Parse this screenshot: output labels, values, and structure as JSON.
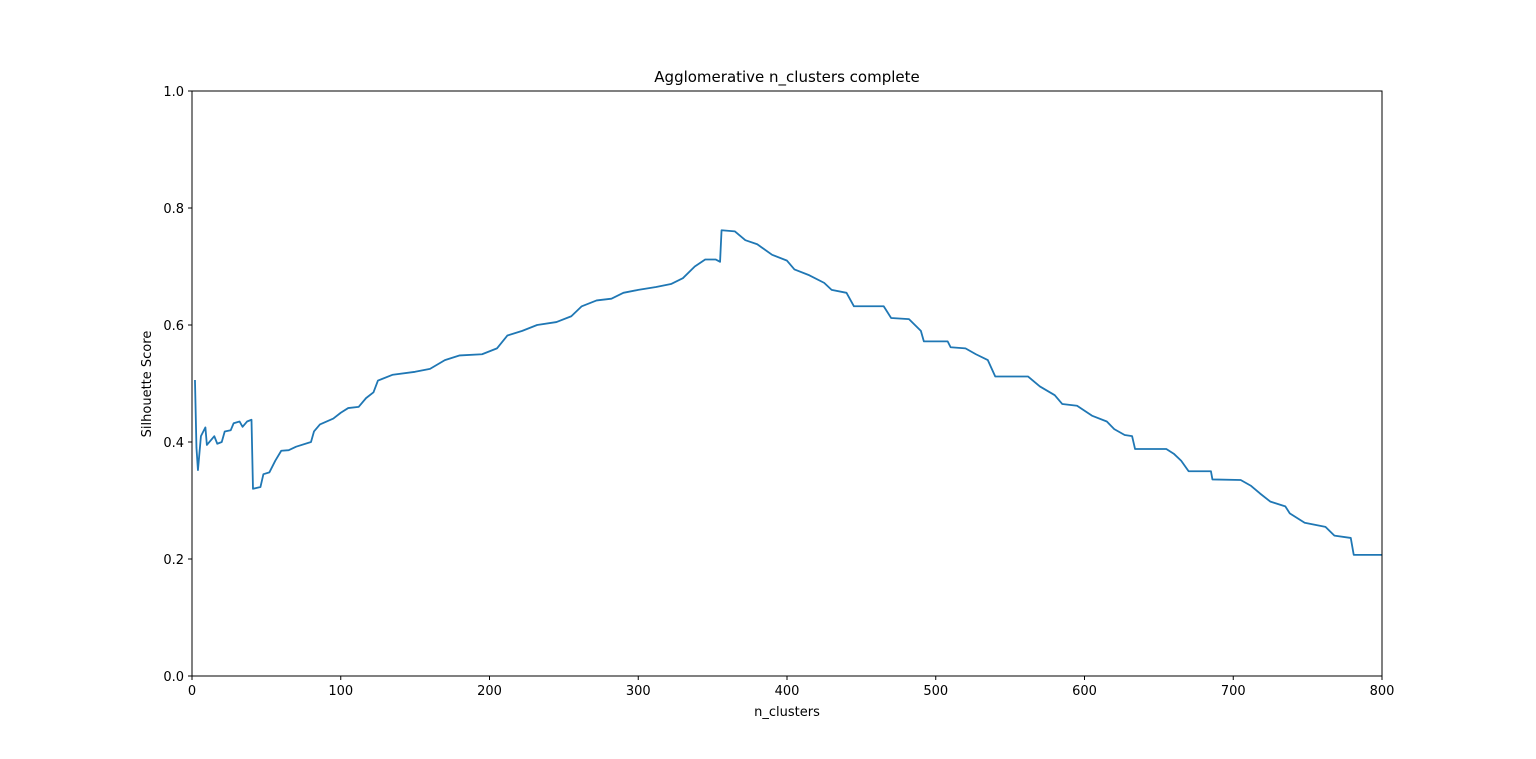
{
  "chart_data": {
    "type": "line",
    "title": "Agglomerative n_clusters complete",
    "x_label": "n_clusters",
    "y_label": "Silhouette Score",
    "x": [
      2,
      3,
      4,
      6,
      9,
      10,
      15,
      17,
      20,
      22,
      26,
      28,
      32,
      34,
      37,
      40,
      41,
      46,
      48,
      52,
      56,
      60,
      65,
      70,
      80,
      82,
      86,
      95,
      100,
      105,
      112,
      117,
      122,
      125,
      135,
      150,
      160,
      170,
      180,
      195,
      205,
      212,
      222,
      232,
      245,
      255,
      262,
      272,
      282,
      290,
      300,
      312,
      322,
      330,
      338,
      345,
      352,
      355,
      356,
      365,
      372,
      380,
      390,
      400,
      405,
      415,
      425,
      430,
      440,
      445,
      465,
      470,
      482,
      490,
      492,
      508,
      510,
      520,
      527,
      535,
      540,
      562,
      570,
      580,
      585,
      595,
      605,
      615,
      620,
      627,
      632,
      634,
      655,
      660,
      665,
      670,
      685,
      686,
      705,
      712,
      718,
      725,
      735,
      738,
      748,
      762,
      768,
      779,
      781,
      800
    ],
    "values": [
      0.506,
      0.39,
      0.352,
      0.41,
      0.425,
      0.395,
      0.41,
      0.397,
      0.4,
      0.418,
      0.42,
      0.432,
      0.435,
      0.426,
      0.435,
      0.438,
      0.32,
      0.323,
      0.345,
      0.348,
      0.368,
      0.385,
      0.386,
      0.392,
      0.4,
      0.418,
      0.43,
      0.44,
      0.45,
      0.458,
      0.46,
      0.475,
      0.485,
      0.505,
      0.515,
      0.52,
      0.525,
      0.54,
      0.548,
      0.55,
      0.56,
      0.582,
      0.59,
      0.6,
      0.605,
      0.615,
      0.632,
      0.642,
      0.645,
      0.655,
      0.66,
      0.665,
      0.67,
      0.68,
      0.7,
      0.712,
      0.712,
      0.708,
      0.762,
      0.76,
      0.745,
      0.738,
      0.72,
      0.71,
      0.695,
      0.685,
      0.672,
      0.66,
      0.655,
      0.632,
      0.632,
      0.612,
      0.61,
      0.59,
      0.572,
      0.572,
      0.562,
      0.56,
      0.55,
      0.54,
      0.512,
      0.512,
      0.495,
      0.48,
      0.465,
      0.462,
      0.445,
      0.435,
      0.422,
      0.412,
      0.41,
      0.388,
      0.388,
      0.38,
      0.368,
      0.35,
      0.35,
      0.336,
      0.335,
      0.325,
      0.312,
      0.298,
      0.29,
      0.278,
      0.262,
      0.255,
      0.24,
      0.236,
      0.207,
      0.207
    ],
    "color": "#1f77b4",
    "xlim": [
      0,
      800
    ],
    "xticks": [
      0,
      100,
      200,
      300,
      400,
      500,
      600,
      700,
      800
    ],
    "ylim": [
      0,
      1
    ],
    "yticks": [
      {
        "value": 0,
        "label": "0.0"
      },
      0.2,
      0.4,
      0.6,
      0.8,
      {
        "value": 1,
        "label": "1.0"
      }
    ]
  }
}
